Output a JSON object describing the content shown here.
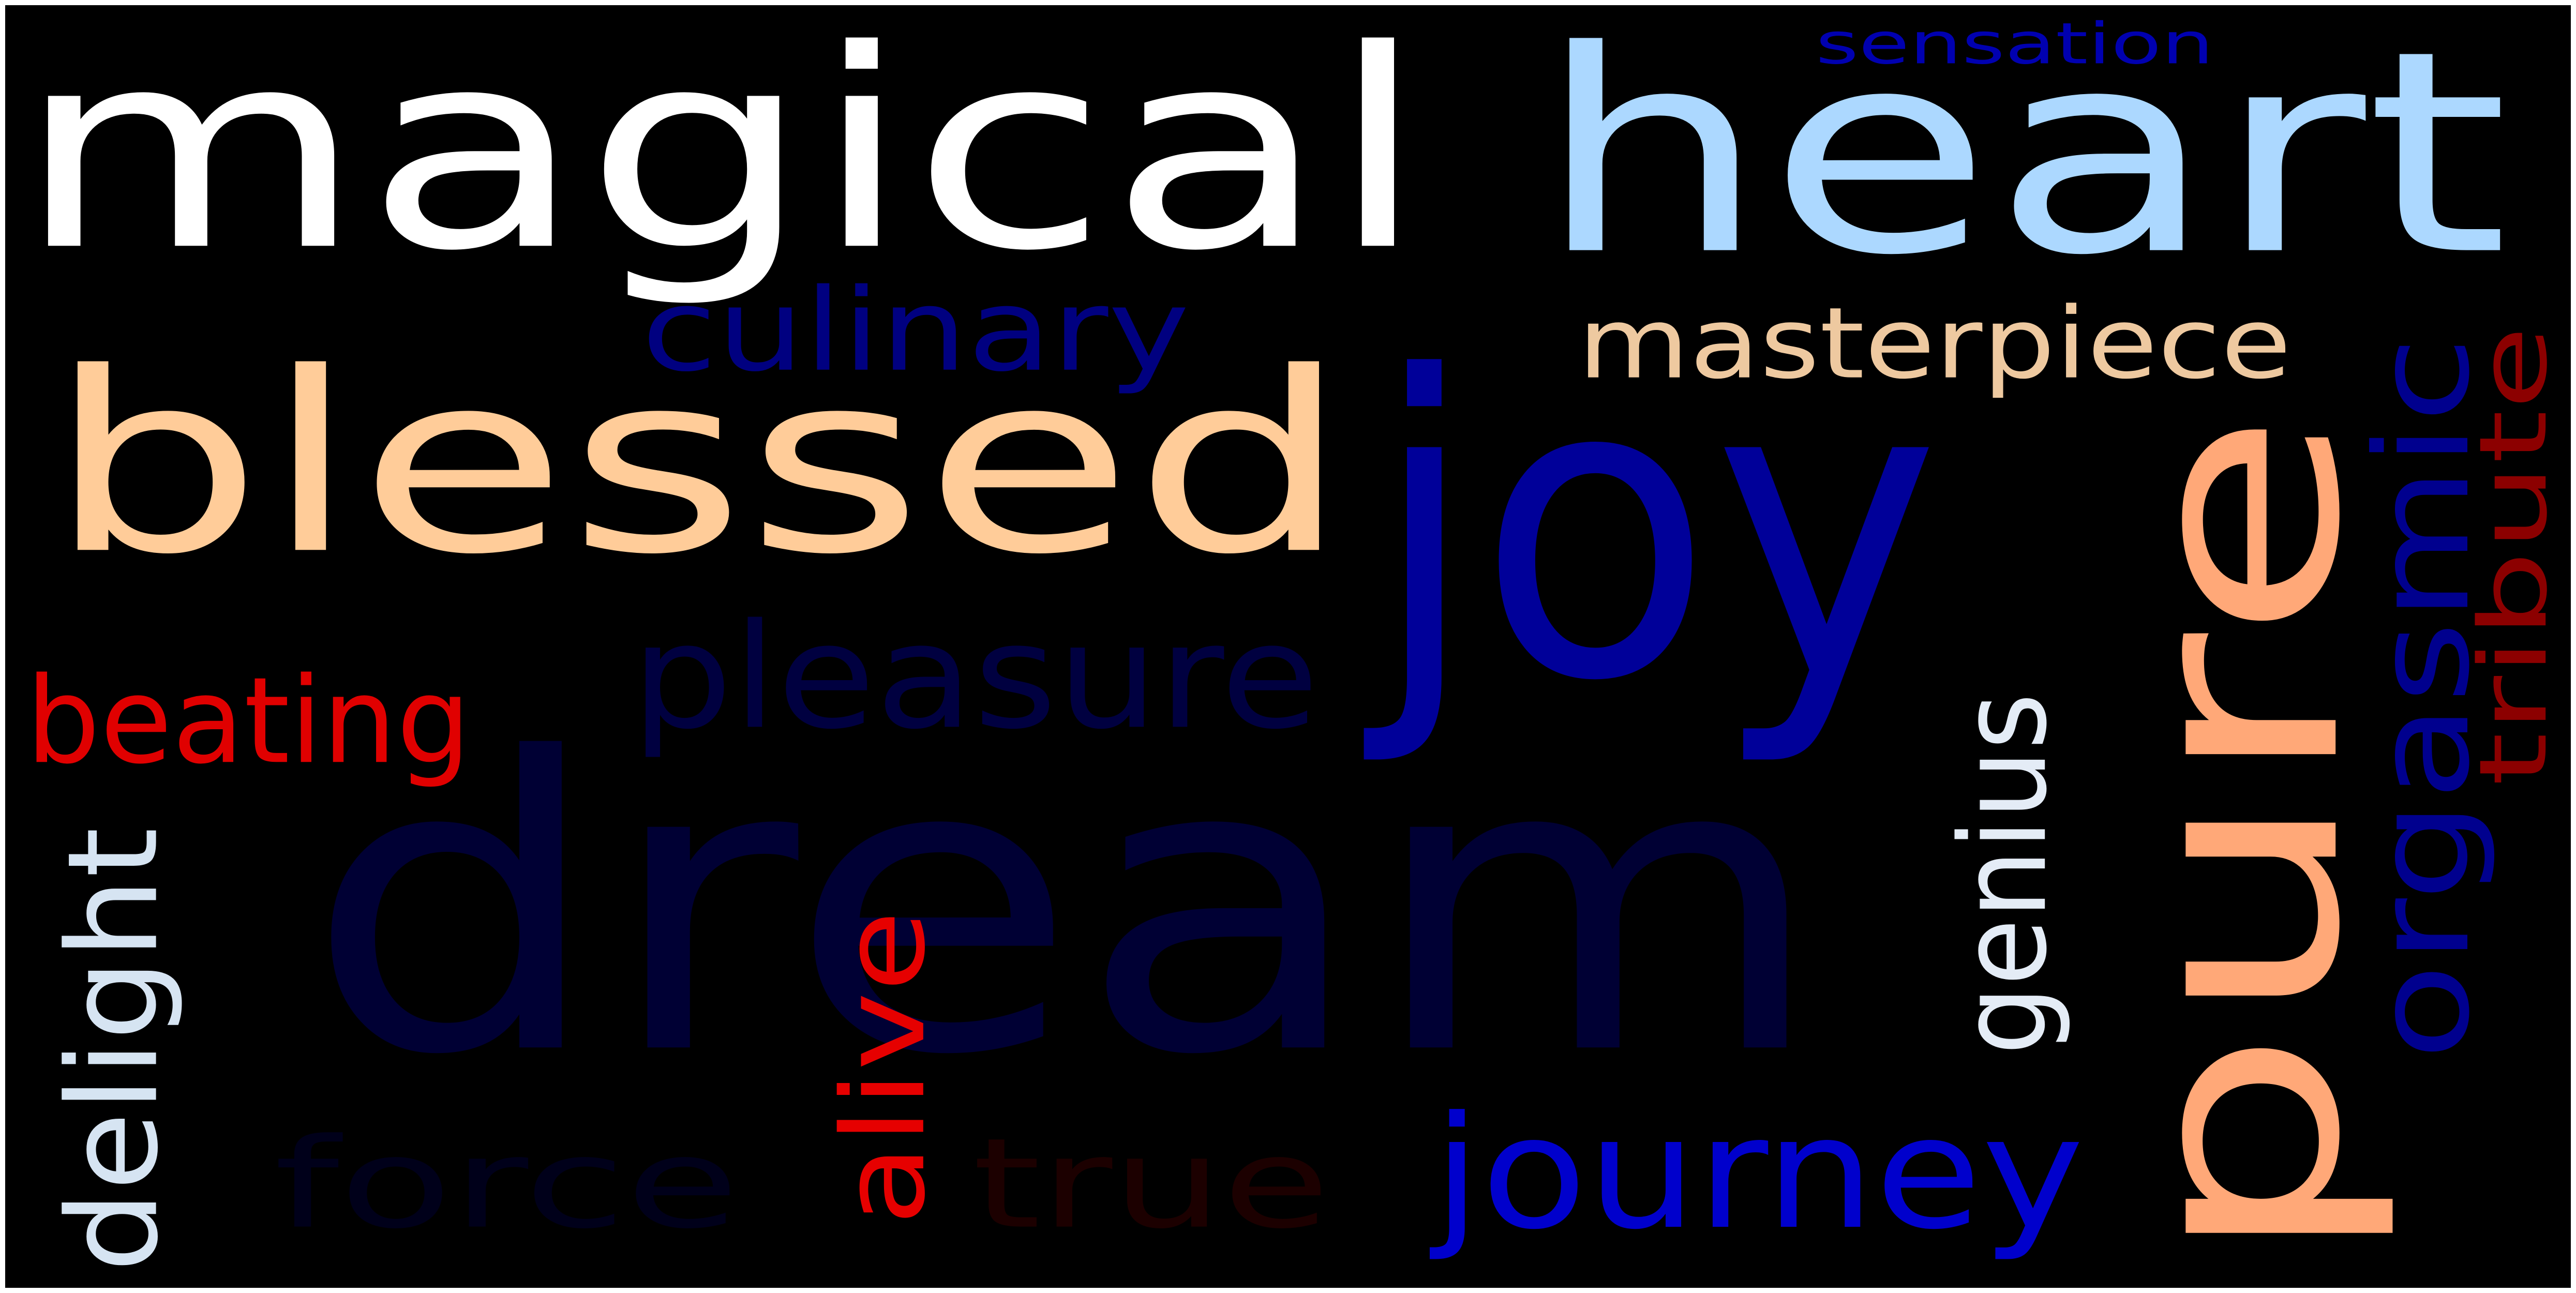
{
  "words": [
    {
      "text": "magical",
      "color": "#ffffff"
    },
    {
      "text": "heart",
      "color": "#acd8ff"
    },
    {
      "text": "sensation",
      "color": "#0000b0"
    },
    {
      "text": "blessed",
      "color": "#ffcc99"
    },
    {
      "text": "joy",
      "color": "#000099"
    },
    {
      "text": "culinary",
      "color": "#000080"
    },
    {
      "text": "masterpiece",
      "color": "#eec9a0"
    },
    {
      "text": "pure",
      "color": "#ffa878"
    },
    {
      "text": "orgasmic",
      "color": "#00008e"
    },
    {
      "text": "tribute",
      "color": "#8c0000"
    },
    {
      "text": "pleasure",
      "color": "#000040"
    },
    {
      "text": "beating",
      "color": "#e00000"
    },
    {
      "text": "dream",
      "color": "#000034"
    },
    {
      "text": "genius",
      "color": "#e4ecf6"
    },
    {
      "text": "delight",
      "color": "#d6e4f2"
    },
    {
      "text": "alive",
      "color": "#e60000"
    },
    {
      "text": "force",
      "color": "#00001a"
    },
    {
      "text": "true",
      "color": "#1c0000"
    },
    {
      "text": "journey",
      "color": "#0000cc"
    }
  ]
}
